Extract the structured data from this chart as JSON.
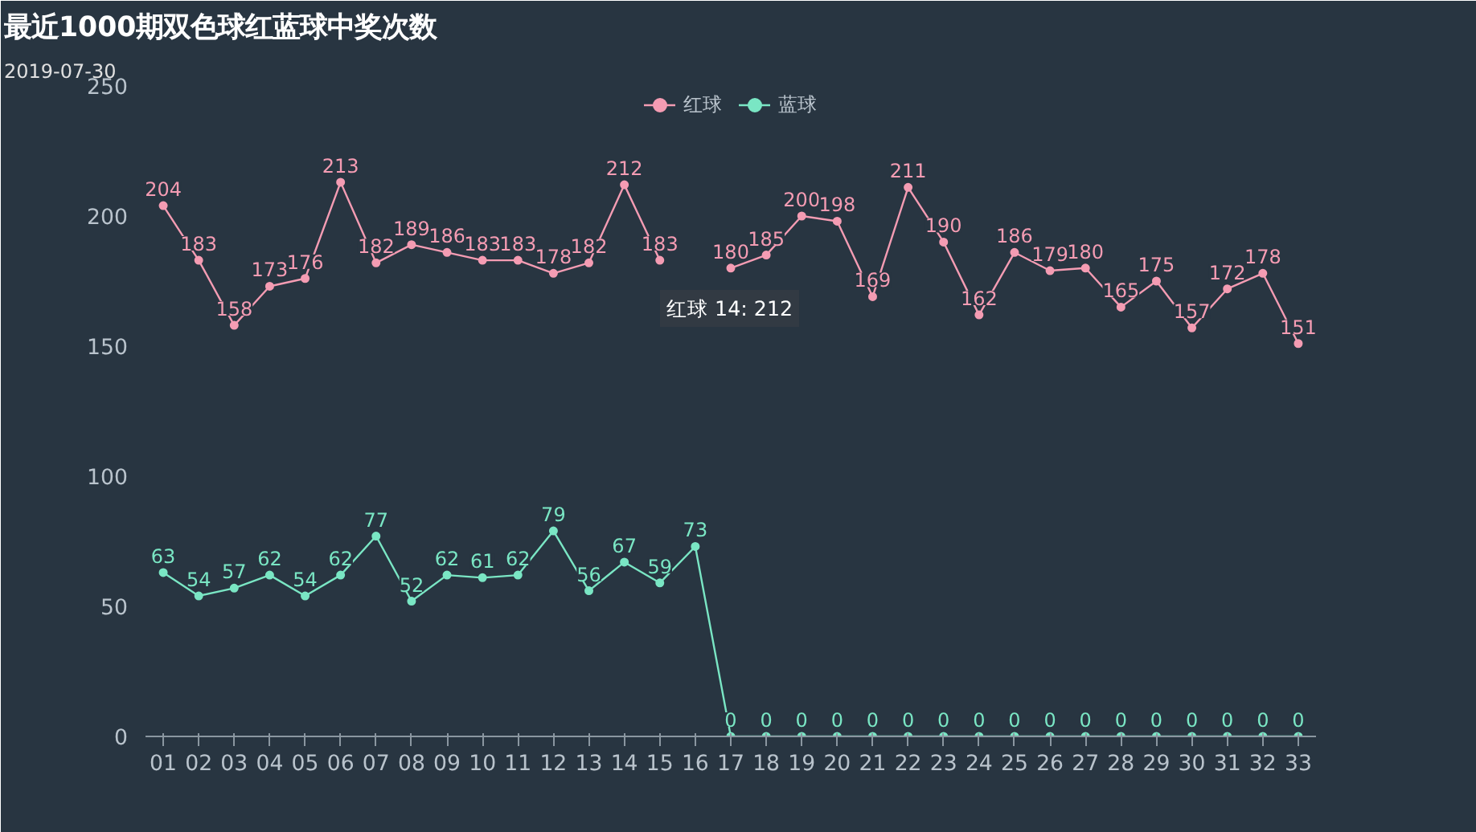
{
  "chart_data": {
    "type": "line",
    "title": "最近1000期双色球红蓝球中奖次数",
    "subtitle": "2019-07-30",
    "categories": [
      "01",
      "02",
      "03",
      "04",
      "05",
      "06",
      "07",
      "08",
      "09",
      "10",
      "11",
      "12",
      "13",
      "14",
      "15",
      "16",
      "17",
      "18",
      "19",
      "20",
      "21",
      "22",
      "23",
      "24",
      "25",
      "26",
      "27",
      "28",
      "29",
      "30",
      "31",
      "32",
      "33"
    ],
    "series": [
      {
        "name": "红球",
        "color": "#f49cb3",
        "values": [
          204,
          183,
          158,
          173,
          176,
          213,
          182,
          189,
          186,
          183,
          183,
          178,
          182,
          212,
          183,
          null,
          180,
          185,
          200,
          198,
          169,
          211,
          190,
          162,
          186,
          179,
          180,
          165,
          175,
          157,
          172,
          178,
          151
        ]
      },
      {
        "name": "蓝球",
        "color": "#7ae6c4",
        "values": [
          63,
          54,
          57,
          62,
          54,
          62,
          77,
          52,
          62,
          61,
          62,
          79,
          56,
          67,
          59,
          73,
          0,
          0,
          0,
          0,
          0,
          0,
          0,
          0,
          0,
          0,
          0,
          0,
          0,
          0,
          0,
          0,
          0
        ]
      }
    ],
    "ylim": [
      0,
      250
    ],
    "yticks": [
      0,
      50,
      100,
      150,
      200,
      250
    ],
    "grid": false,
    "legend": "top",
    "marker": "circle",
    "data_labels": true,
    "annotations": [
      "红球 14: 212"
    ]
  }
}
